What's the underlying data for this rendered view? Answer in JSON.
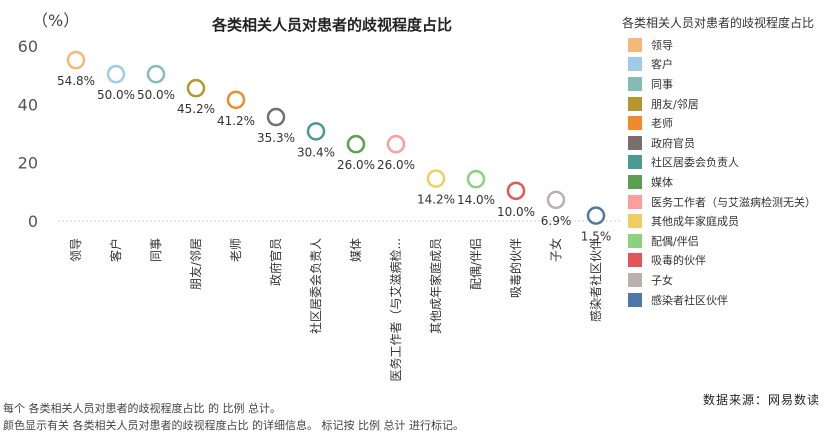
{
  "chart_data": {
    "type": "scatter",
    "title": "各类相关人员对患者的歧视程度占比",
    "y_unit_label": "（%）",
    "ylim": [
      0,
      60
    ],
    "yticks": [
      0,
      20,
      40,
      60
    ],
    "grid": false,
    "legend_position": "right",
    "categories": [
      "领导",
      "客户",
      "同事",
      "朋友/邻居",
      "老师",
      "政府官员",
      "社区居委会负责人",
      "媒体",
      "医务工作者（与艾滋病检...",
      "其他成年家庭成员",
      "配偶/伴侣",
      "吸毒的伙伴",
      "子女",
      "感染者社区伙伴"
    ],
    "values": [
      54.8,
      50.0,
      50.0,
      45.2,
      41.2,
      35.3,
      30.4,
      26.0,
      26.0,
      14.2,
      14.0,
      10.0,
      6.9,
      1.5
    ],
    "value_labels": [
      "54.8%",
      "50.0%",
      "50.0%",
      "45.2%",
      "41.2%",
      "35.3%",
      "30.4%",
      "26.0%",
      "26.0%",
      "14.2%",
      "14.0%",
      "10.0%",
      "6.9%",
      "1.5%"
    ],
    "colors": [
      "#f5b877",
      "#9fcbe9",
      "#86bcb6",
      "#b3962d",
      "#f08a2b",
      "#79706e",
      "#4a9b92",
      "#59a14f",
      "#ff9d9a",
      "#f1ce63",
      "#8cd17d",
      "#e15759",
      "#bab0ac",
      "#4e79a7"
    ]
  },
  "legend": {
    "title": "各类相关人员对患者的歧视程度占比",
    "items": [
      "领导",
      "客户",
      "同事",
      "朋友/邻居",
      "老师",
      "政府官员",
      "社区居委会负责人",
      "媒体",
      "医务工作者（与艾滋病检测无关）",
      "其他成年家庭成员",
      "配偶/伴侣",
      "吸毒的伙伴",
      "子女",
      "感染者社区伙伴"
    ]
  },
  "footnote": {
    "line1": "每个 各类相关人员对患者的歧视程度占比 的 比例 总计。",
    "line2": "颜色显示有关 各类相关人员对患者的歧视程度占比 的详细信息。 标记按 比例 总计 进行标记。"
  },
  "source": "数据来源：网易数读"
}
